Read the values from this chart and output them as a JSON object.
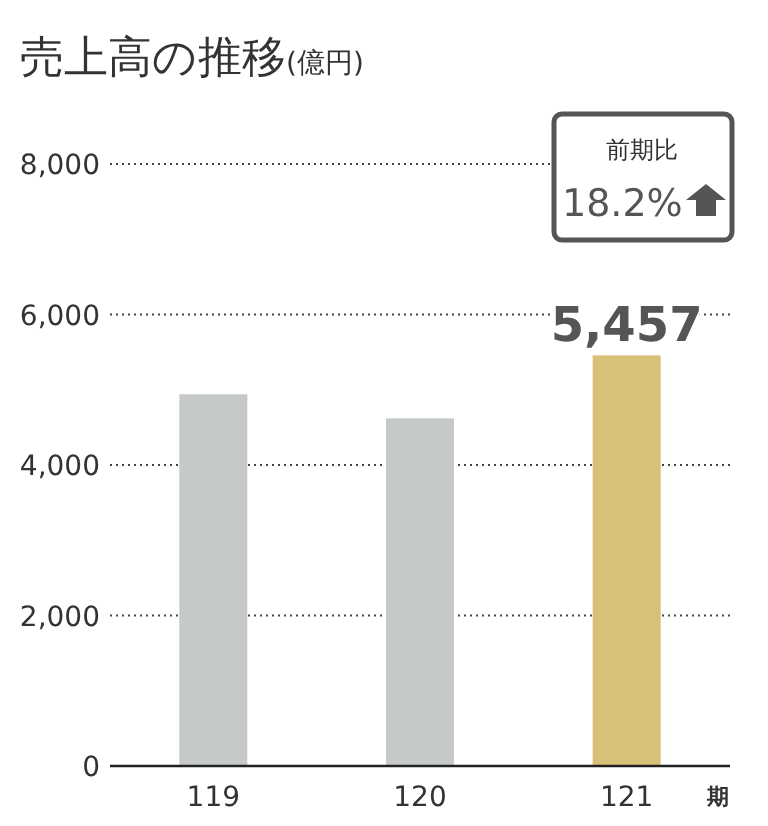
{
  "chart_data": {
    "type": "bar",
    "title": "売上高の推移",
    "subtitle": "(億円)",
    "xlabel": "期",
    "categories": [
      "119",
      "120",
      "121"
    ],
    "values": [
      4940,
      4620,
      5457
    ],
    "colors": [
      "#c6c9c9",
      "#c6c9c9",
      "#d8c078"
    ],
    "value_labels": [
      null,
      null,
      "5,457"
    ],
    "ylim": [
      0,
      8000
    ],
    "yticks": [
      {
        "value": 0,
        "label": "0"
      },
      {
        "value": 2000,
        "label": "2,000"
      },
      {
        "value": 4000,
        "label": "4,000"
      },
      {
        "value": 6000,
        "label": "6,000"
      },
      {
        "value": 8000,
        "label": "8,000"
      }
    ],
    "grid": "y",
    "annotations": [
      "前期比",
      "18.2%"
    ]
  }
}
